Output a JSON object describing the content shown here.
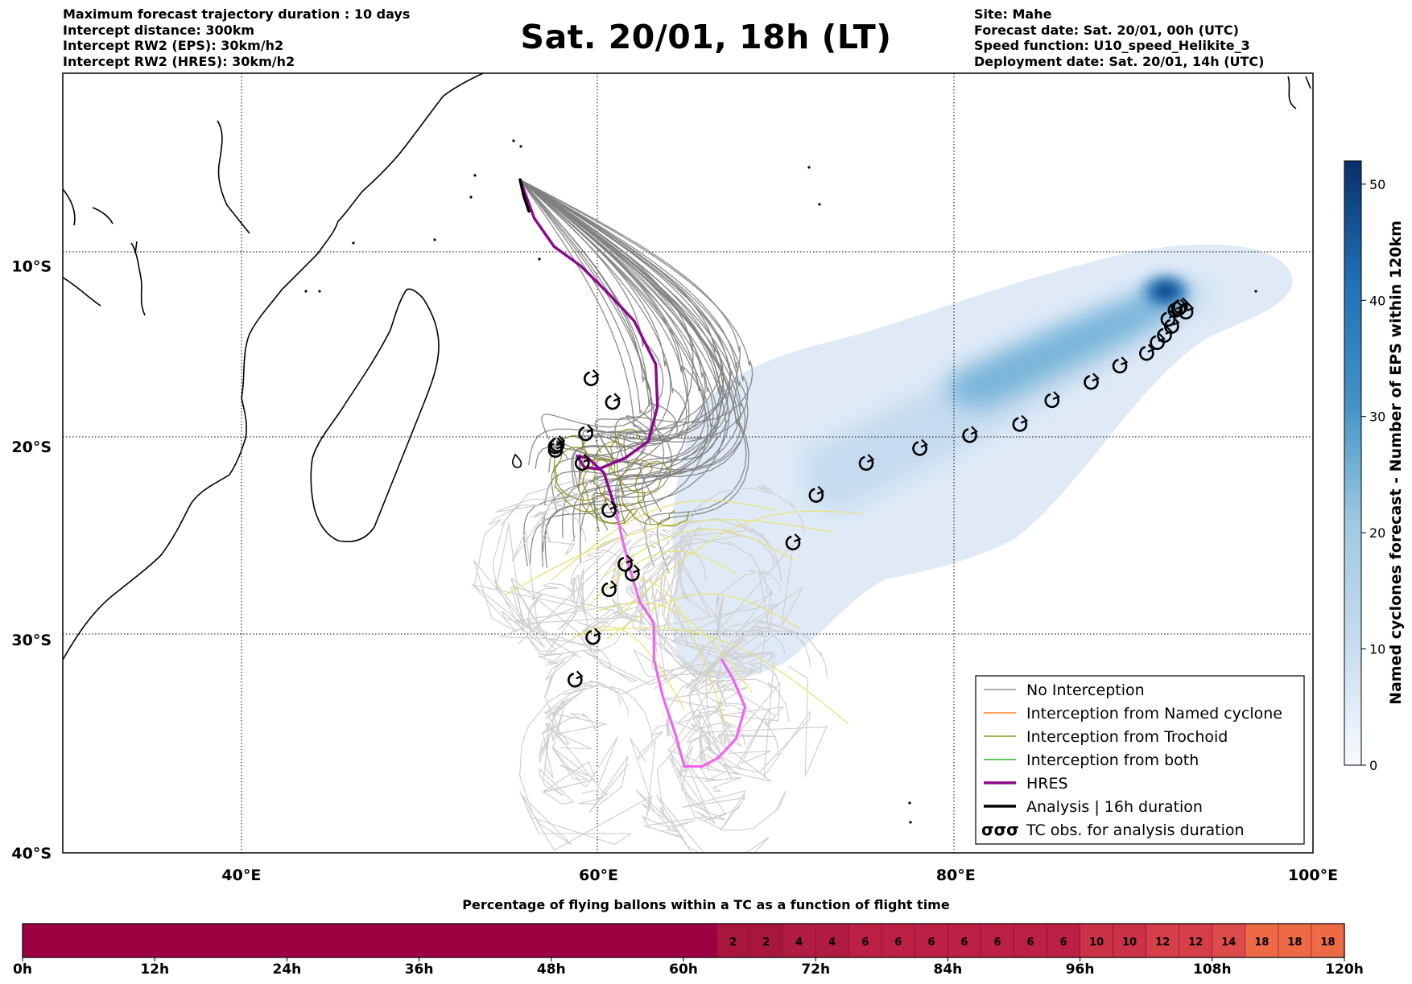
{
  "header": {
    "title": "Sat. 20/01, 18h (LT)",
    "left_lines": [
      "Maximum forecast trajectory duration : 10 days",
      "Intercept distance: 300km",
      "Intercept RW2 (EPS):  30km/h2",
      "Intercept RW2 (HRES): 30km/h2"
    ],
    "right_lines": [
      "Site: Mahe",
      "Forecast date: Sat. 20/01, 00h (UTC)",
      "Speed function: U10_speed_Helikite_3",
      "Deployment date: Sat. 20/01, 14h (UTC)"
    ]
  },
  "colors": {
    "no_interception": "#808080",
    "named_cyclone": "#ff6a00",
    "trochoid": "#808000",
    "both": "#00a000",
    "hres": "#8b0a8b",
    "hres_forecast": "#ee66ee",
    "analysis": "#000000",
    "eps_light": "#d0d0d0",
    "eps_yellow": "#e8e27a"
  },
  "chart_data": [
    {
      "type": "line",
      "title": "Sat. 20/01, 18h (LT)",
      "map": {
        "xlim": [
          30,
          100
        ],
        "ylim": [
          -40,
          1
        ],
        "xticks": [
          40,
          60,
          80,
          100
        ],
        "xtick_labels": [
          "40°E",
          "60°E",
          "80°E",
          "100°E"
        ],
        "yticks": [
          -10,
          -20,
          -30,
          -40
        ],
        "ytick_labels": [
          "10°S",
          "20°S",
          "30°S",
          "40°S"
        ],
        "grid": true
      },
      "legend": {
        "position": "lower-right",
        "entries": [
          "No Interception",
          "Interception from Named cyclone",
          "Interception from Trochoid",
          "Interception from both",
          "HRES",
          "Analysis | 16h duration",
          "TC obs. for analysis duration"
        ],
        "tc_symbol": "σσσ"
      },
      "series": [
        {
          "name": "HRES",
          "x": [
            55.6,
            56.4,
            57.5,
            59.0,
            60.5,
            62.0,
            63.2,
            63.3,
            62.8,
            61.5,
            60.0,
            59.2,
            58.8,
            59.4,
            60.3,
            60.7,
            61.0
          ],
          "y": [
            -5.1,
            -7.3,
            -8.9,
            -10.0,
            -11.5,
            -13.1,
            -15.5,
            -17.8,
            -19.7,
            -20.6,
            -21.2,
            -21.1,
            -20.5,
            -20.6,
            -21.4,
            -22.6,
            -23.5
          ]
        },
        {
          "name": "HRES forecast",
          "x": [
            61.0,
            61.3,
            61.8,
            62.3,
            63.1,
            63.1,
            63.6,
            64.3,
            64.8,
            65.8,
            66.7,
            67.7,
            68.2,
            67.5,
            66.9
          ],
          "y": [
            -23.5,
            -24.8,
            -26.6,
            -28.1,
            -29.2,
            -31.0,
            -32.8,
            -34.6,
            -36.1,
            -36.1,
            -35.7,
            -34.8,
            -33.3,
            -31.9,
            -31.0
          ]
        },
        {
          "name": "Analysis | 16h duration",
          "x": [
            55.6,
            55.8,
            56.1
          ],
          "y": [
            -5.1,
            -6.0,
            -6.9
          ]
        }
      ],
      "tc_observations": {
        "x": [
          92.6,
          92.3,
          92.9,
          91.9,
          92.5,
          92.1,
          91.7,
          91.3,
          90.7,
          89.2,
          87.6,
          85.4,
          83.6,
          80.8,
          78.0,
          75.0,
          72.2,
          70.9,
          59.6,
          60.8,
          59.3,
          57.6,
          57.7,
          57.6,
          59.1,
          60.6,
          61.5,
          61.9,
          60.6,
          59.7,
          58.7
        ],
        "y": [
          -12.3,
          -12.5,
          -12.6,
          -13.0,
          -12.4,
          -13.4,
          -13.9,
          -14.3,
          -14.9,
          -15.6,
          -16.5,
          -17.5,
          -18.8,
          -19.4,
          -20.1,
          -20.9,
          -22.6,
          -25.1,
          -16.3,
          -17.6,
          -19.3,
          -20.0,
          -19.9,
          -20.2,
          -20.9,
          -23.4,
          -26.2,
          -26.7,
          -27.5,
          -29.9,
          -32.0
        ]
      }
    },
    {
      "type": "heatmap",
      "title": "",
      "ylabel": "Named cyclones forecast - Number of EPS within 120km",
      "colorbar_ticks": [
        0,
        10,
        20,
        30,
        40,
        50
      ],
      "range": [
        0,
        52
      ],
      "cmap": "Blues",
      "peak_center": {
        "x": 92.5,
        "y": -12.5
      },
      "axis": {
        "x": [
          70,
          100
        ],
        "y": [
          -35,
          -9
        ]
      }
    },
    {
      "type": "heatmap",
      "title": "Percentage of flying ballons within a TC as a function of flight time",
      "tick_labels": [
        "0h",
        "12h",
        "24h",
        "36h",
        "48h",
        "60h",
        "72h",
        "84h",
        "96h",
        "108h",
        "120h"
      ],
      "cell_hours": 3,
      "values": [
        0,
        0,
        0,
        0,
        0,
        0,
        0,
        0,
        0,
        0,
        0,
        0,
        0,
        0,
        0,
        0,
        0,
        0,
        0,
        0,
        0,
        2,
        2,
        4,
        4,
        6,
        6,
        6,
        6,
        6,
        6,
        6,
        10,
        10,
        12,
        12,
        14,
        18,
        18,
        18
      ],
      "label_from_index": 21
    }
  ]
}
